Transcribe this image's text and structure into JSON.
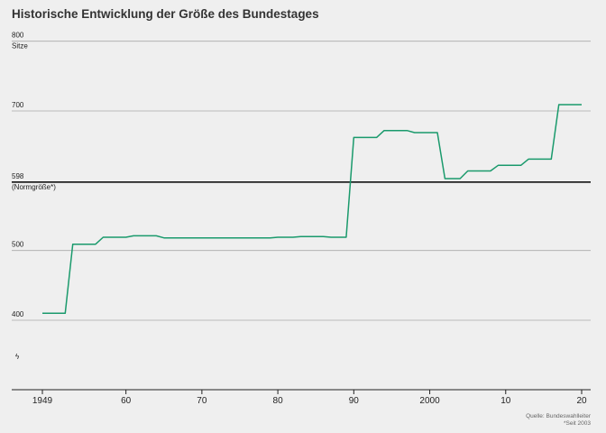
{
  "title": "Historische Entwicklung der Größe des Bundestages",
  "source_line1": "Quelle: Bundeswahlleiter",
  "source_line2": "*Seit 2003",
  "colors": {
    "line": "#1a9a6c",
    "grid": "#aaaaaa",
    "reference": "#000000",
    "background": "#efefef"
  },
  "chart_data": {
    "type": "line",
    "title": "Historische Entwicklung der Größe des Bundestages",
    "ylabel": "Sitze",
    "ylim": [
      300,
      800
    ],
    "xlim": [
      1946,
      2021
    ],
    "y_ticks": [
      {
        "value": 800,
        "label": "800",
        "sublabel": "Sitze"
      },
      {
        "value": 700,
        "label": "700",
        "sublabel": ""
      },
      {
        "value": 598,
        "label": "598",
        "sublabel": "(Normgröße*)"
      },
      {
        "value": 500,
        "label": "500",
        "sublabel": ""
      },
      {
        "value": 400,
        "label": "400",
        "sublabel": ""
      }
    ],
    "axis_break_symbol": "ϟ",
    "x_ticks": [
      {
        "value": 1949,
        "label": "1949"
      },
      {
        "value": 1960,
        "label": "60"
      },
      {
        "value": 1970,
        "label": "70"
      },
      {
        "value": 1980,
        "label": "80"
      },
      {
        "value": 1990,
        "label": "90"
      },
      {
        "value": 2000,
        "label": "2000"
      },
      {
        "value": 2010,
        "label": "10"
      },
      {
        "value": 2020,
        "label": "20"
      }
    ],
    "reference_line": {
      "value": 598,
      "label": "598 (Normgröße*)"
    },
    "grid": true,
    "series": [
      {
        "x": [
          1949,
          1952,
          1953,
          1956,
          1957,
          1960,
          1961,
          1964,
          1965,
          1968,
          1969,
          1971,
          1972,
          1975,
          1976,
          1979,
          1980,
          1982,
          1983,
          1986,
          1987,
          1989,
          1990,
          1993,
          1994,
          1997,
          1998,
          2001,
          2002,
          2004,
          2005,
          2008,
          2009,
          2012,
          2013,
          2016,
          2017,
          2020
        ],
        "y": [
          410,
          410,
          509,
          509,
          519,
          519,
          521,
          521,
          518,
          518,
          518,
          518,
          518,
          518,
          518,
          518,
          519,
          519,
          520,
          520,
          519,
          519,
          662,
          662,
          672,
          672,
          669,
          669,
          603,
          603,
          614,
          614,
          622,
          622,
          631,
          631,
          709,
          709
        ]
      }
    ]
  }
}
